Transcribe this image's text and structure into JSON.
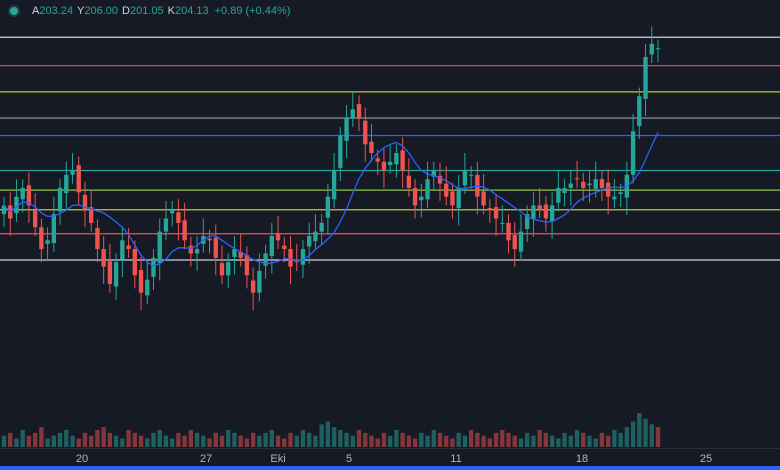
{
  "legend": {
    "open_key": "A",
    "open": "203.24",
    "high_key": "Y",
    "high": "206.00",
    "low_key": "D",
    "low": "201.05",
    "close_key": "K",
    "close": "204.13",
    "change": "+0.89 (+0.44%)"
  },
  "x_axis": {
    "labels": [
      "20",
      "27",
      "Eki",
      "5",
      "11",
      "18",
      "25"
    ]
  },
  "colors": {
    "background": "#161a25",
    "up": "#26a69a",
    "down": "#ef5350",
    "ma": "#2962ff",
    "vol_up": "rgba(38,166,154,0.5)",
    "vol_down": "rgba(239,83,80,0.5)"
  },
  "chart_data": {
    "type": "candlestick",
    "x_range_days": [
      0,
      30
    ],
    "y_range": [
      120,
      210
    ],
    "horizontal_levels": [
      {
        "price": 206.5,
        "color": "#d1d4dc"
      },
      {
        "price": 200.0,
        "color": "#ef5350"
      },
      {
        "price": 194.0,
        "color": "#c0ca33"
      },
      {
        "price": 188.0,
        "color": "#9e9e9e"
      },
      {
        "price": 184.0,
        "color": "#2962ff"
      },
      {
        "price": 176.0,
        "color": "#26a69a"
      },
      {
        "price": 171.5,
        "color": "#8bc34a"
      },
      {
        "price": 167.0,
        "color": "#c0ca33"
      },
      {
        "price": 161.5,
        "color": "#ef5350"
      },
      {
        "price": 155.5,
        "color": "#d1d4dc"
      }
    ],
    "closes": [
      168,
      165,
      170,
      172,
      168,
      163,
      158,
      160,
      166,
      172,
      175,
      176,
      171,
      167,
      164,
      158,
      154,
      150,
      155,
      160,
      158,
      152,
      148,
      151,
      156,
      162,
      165,
      167,
      164,
      160,
      157,
      158,
      161,
      160,
      156,
      152,
      155,
      158,
      156,
      152,
      148,
      153,
      157,
      161,
      160,
      158,
      154,
      155,
      158,
      161,
      162,
      164,
      170,
      176,
      184,
      188,
      190,
      188,
      182,
      180,
      178,
      176,
      178,
      180,
      176,
      172,
      168,
      170,
      174,
      176,
      173,
      170,
      168,
      172,
      176,
      175,
      170,
      168,
      167,
      165,
      164,
      160,
      158,
      162,
      166,
      168,
      167,
      165,
      168,
      172,
      172,
      173,
      174,
      172,
      173,
      174,
      172,
      170,
      170,
      171,
      175,
      185,
      193,
      202,
      205,
      204
    ],
    "volumes": [
      4,
      5,
      3,
      6,
      4,
      5,
      7,
      3,
      4,
      5,
      6,
      4,
      3,
      5,
      4,
      6,
      7,
      5,
      4,
      3,
      6,
      5,
      4,
      3,
      5,
      6,
      4,
      3,
      5,
      4,
      6,
      5,
      4,
      3,
      5,
      4,
      6,
      5,
      4,
      3,
      5,
      4,
      5,
      6,
      4,
      3,
      5,
      4,
      6,
      5,
      4,
      8,
      9,
      7,
      6,
      5,
      4,
      6,
      5,
      4,
      3,
      5,
      4,
      6,
      5,
      4,
      3,
      5,
      4,
      6,
      5,
      4,
      3,
      5,
      4,
      6,
      5,
      4,
      3,
      5,
      6,
      5,
      4,
      3,
      5,
      4,
      6,
      5,
      4,
      3,
      5,
      4,
      6,
      5,
      4,
      3,
      5,
      4,
      6,
      5,
      7,
      9,
      12,
      10,
      8,
      7
    ]
  }
}
